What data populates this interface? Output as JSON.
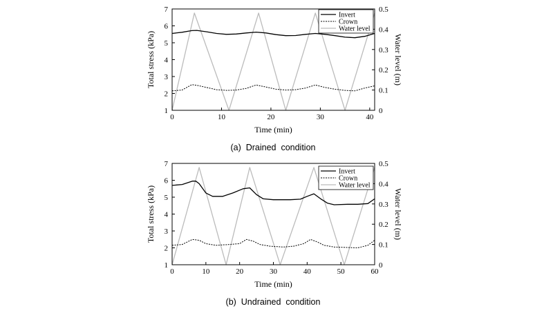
{
  "chart_data": [
    {
      "type": "line",
      "caption": "(a)  Drained  condition",
      "xlabel": "Time (min)",
      "ylabel": "Total stress (kPa)",
      "y2label": "Water level (m)",
      "xlim": [
        0,
        41
      ],
      "ylim": [
        1,
        7
      ],
      "y2lim": [
        0,
        0.5
      ],
      "xticks": [
        "0",
        "10",
        "20",
        "30",
        "40"
      ],
      "yticks": [
        "1",
        "2",
        "3",
        "4",
        "5",
        "6",
        "7"
      ],
      "y2ticks": [
        "0",
        "0.1",
        "0.2",
        "0.3",
        "0.4",
        "0.5"
      ],
      "grid": false,
      "legend_position": "top-right",
      "series": [
        {
          "name": "Invert",
          "axis": "left",
          "style": "solid",
          "color": "#000000",
          "points": [
            [
              0,
              5.55
            ],
            [
              2,
              5.62
            ],
            [
              4,
              5.72
            ],
            [
              5,
              5.73
            ],
            [
              7,
              5.65
            ],
            [
              9,
              5.55
            ],
            [
              11,
              5.5
            ],
            [
              13,
              5.52
            ],
            [
              15,
              5.58
            ],
            [
              17,
              5.63
            ],
            [
              19,
              5.58
            ],
            [
              21,
              5.48
            ],
            [
              23,
              5.42
            ],
            [
              25,
              5.43
            ],
            [
              27,
              5.5
            ],
            [
              29,
              5.55
            ],
            [
              31,
              5.5
            ],
            [
              33,
              5.42
            ],
            [
              35,
              5.33
            ],
            [
              37,
              5.3
            ],
            [
              39,
              5.38
            ],
            [
              41,
              5.55
            ]
          ]
        },
        {
          "name": "Crown",
          "axis": "left",
          "style": "dashed",
          "color": "#000000",
          "points": [
            [
              0,
              2.15
            ],
            [
              2,
              2.2
            ],
            [
              4,
              2.52
            ],
            [
              5,
              2.48
            ],
            [
              7,
              2.35
            ],
            [
              9,
              2.22
            ],
            [
              11,
              2.18
            ],
            [
              13,
              2.2
            ],
            [
              15,
              2.3
            ],
            [
              17,
              2.5
            ],
            [
              19,
              2.38
            ],
            [
              21,
              2.25
            ],
            [
              23,
              2.2
            ],
            [
              25,
              2.22
            ],
            [
              27,
              2.32
            ],
            [
              29,
              2.5
            ],
            [
              31,
              2.35
            ],
            [
              33,
              2.25
            ],
            [
              35,
              2.18
            ],
            [
              37,
              2.15
            ],
            [
              39,
              2.32
            ],
            [
              41,
              2.45
            ]
          ]
        },
        {
          "name": "Water level",
          "axis": "right",
          "style": "solid",
          "color": "#bbbbbb",
          "points": [
            [
              0,
              0
            ],
            [
              4.5,
              0.48
            ],
            [
              11.5,
              0
            ],
            [
              17.5,
              0.48
            ],
            [
              23,
              0
            ],
            [
              29,
              0.48
            ],
            [
              35,
              0
            ],
            [
              41,
              0.48
            ]
          ]
        }
      ]
    },
    {
      "type": "line",
      "caption": "(b)  Undrained  condition",
      "xlabel": "Time (min)",
      "ylabel": "Total stress (kPa)",
      "y2label": "Water level (m)",
      "xlim": [
        0,
        60
      ],
      "ylim": [
        1,
        7
      ],
      "y2lim": [
        0,
        0.5
      ],
      "xticks": [
        "0",
        "10",
        "20",
        "30",
        "40",
        "50",
        "60"
      ],
      "yticks": [
        "1",
        "2",
        "3",
        "4",
        "5",
        "6",
        "7"
      ],
      "y2ticks": [
        "0",
        "0.1",
        "0.2",
        "0.3",
        "0.4",
        "0.5"
      ],
      "grid": false,
      "legend_position": "top-right",
      "series": [
        {
          "name": "Invert",
          "axis": "left",
          "style": "solid",
          "color": "#000000",
          "points": [
            [
              0,
              5.7
            ],
            [
              3,
              5.75
            ],
            [
              6,
              5.95
            ],
            [
              7,
              5.95
            ],
            [
              8,
              5.8
            ],
            [
              10,
              5.25
            ],
            [
              12,
              5.05
            ],
            [
              15,
              5.05
            ],
            [
              18,
              5.25
            ],
            [
              21,
              5.5
            ],
            [
              23,
              5.55
            ],
            [
              25,
              5.15
            ],
            [
              27,
              4.9
            ],
            [
              30,
              4.85
            ],
            [
              35,
              4.85
            ],
            [
              38,
              4.88
            ],
            [
              40,
              5.05
            ],
            [
              42,
              5.2
            ],
            [
              44,
              4.9
            ],
            [
              46,
              4.65
            ],
            [
              48,
              4.55
            ],
            [
              52,
              4.58
            ],
            [
              55,
              4.58
            ],
            [
              58,
              4.62
            ],
            [
              60,
              4.9
            ]
          ]
        },
        {
          "name": "Crown",
          "axis": "left",
          "style": "dashed",
          "color": "#000000",
          "points": [
            [
              0,
              2.15
            ],
            [
              3,
              2.2
            ],
            [
              6,
              2.5
            ],
            [
              8,
              2.45
            ],
            [
              10,
              2.25
            ],
            [
              13,
              2.15
            ],
            [
              17,
              2.2
            ],
            [
              20,
              2.25
            ],
            [
              22,
              2.5
            ],
            [
              24,
              2.4
            ],
            [
              26,
              2.2
            ],
            [
              29,
              2.1
            ],
            [
              33,
              2.05
            ],
            [
              36,
              2.1
            ],
            [
              39,
              2.25
            ],
            [
              41,
              2.5
            ],
            [
              43,
              2.35
            ],
            [
              45,
              2.15
            ],
            [
              48,
              2.05
            ],
            [
              52,
              2.02
            ],
            [
              55,
              2.0
            ],
            [
              58,
              2.15
            ],
            [
              60,
              2.45
            ]
          ]
        },
        {
          "name": "Water level",
          "axis": "right",
          "style": "solid",
          "color": "#bbbbbb",
          "points": [
            [
              0,
              0
            ],
            [
              8,
              0.48
            ],
            [
              16,
              0
            ],
            [
              23,
              0.48
            ],
            [
              32,
              0
            ],
            [
              42,
              0.48
            ],
            [
              51,
              0
            ],
            [
              60,
              0.48
            ]
          ]
        }
      ]
    }
  ]
}
